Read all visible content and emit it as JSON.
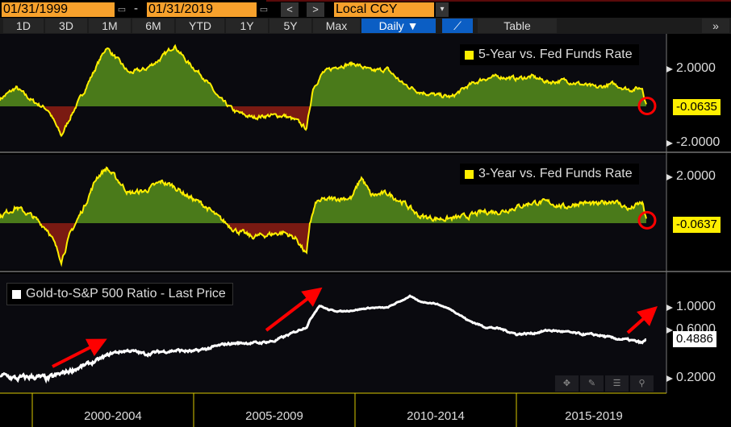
{
  "toolbar": {
    "start_date": "01/31/1999",
    "dash": "-",
    "end_date": "01/31/2019",
    "prev": "<",
    "next": ">",
    "currency": "Local CCY",
    "currency_arrow": "▾",
    "calendar": "▭",
    "ranges": [
      "1D",
      "3D",
      "1M",
      "6M",
      "YTD",
      "1Y",
      "5Y",
      "Max"
    ],
    "frequency": "Daily ▼",
    "chart_icon": "⟋",
    "table": "Table",
    "more": "»"
  },
  "panels": [
    {
      "legend": "5-Year vs. Fed Funds Rate",
      "ticks": [
        "2.0000",
        "-2.0000"
      ],
      "last": "-0.0635"
    },
    {
      "legend": "3-Year vs. Fed Funds Rate",
      "ticks": [
        "2.0000"
      ],
      "last": "-0.0637"
    },
    {
      "legend": "Gold-to-S&P 500 Ratio - Last Price",
      "ticks": [
        "1.0000",
        "0.6000",
        "0.2000"
      ],
      "last": "0.4886"
    }
  ],
  "x_labels": [
    "2000-2004",
    "2005-2009",
    "2010-2014",
    "2015-2019"
  ],
  "chart_tools": [
    "✥",
    "✎",
    "☰",
    "⚲"
  ],
  "colors": {
    "accent": "#f7a12c",
    "active": "#0b5ec4",
    "positive": "#4a7a1a",
    "negative": "#7a1a12",
    "line": "#ffef00"
  },
  "chart_data": [
    {
      "type": "area",
      "title": "5-Year vs. Fed Funds Rate",
      "x": [
        1999,
        1999.5,
        2000,
        2000.5,
        2000.9,
        2001.2,
        2001.6,
        2002,
        2002.3,
        2002.7,
        2003,
        2003.5,
        2004,
        2004.4,
        2004.8,
        2005.3,
        2005.8,
        2006.3,
        2006.8,
        2007.3,
        2007.8,
        2008.2,
        2008.5,
        2008.7,
        2009,
        2009.5,
        2010,
        2010.5,
        2011,
        2011.5,
        2012,
        2012.5,
        2013,
        2013.5,
        2014,
        2014.5,
        2015,
        2015.5,
        2016,
        2016.5,
        2017,
        2017.5,
        2018,
        2018.5,
        2018.9,
        2019.05
      ],
      "y": [
        0.4,
        1.0,
        0.3,
        -0.2,
        -1.6,
        -0.5,
        0.8,
        2.2,
        3.2,
        2.4,
        1.8,
        2.0,
        2.6,
        3.3,
        2.4,
        1.6,
        0.4,
        -0.3,
        -0.6,
        -0.5,
        -0.5,
        -0.8,
        -1.2,
        1.0,
        1.8,
        2.2,
        2.3,
        1.9,
        2.0,
        1.2,
        0.8,
        0.6,
        0.5,
        1.1,
        1.5,
        1.6,
        1.5,
        1.6,
        1.3,
        1.4,
        1.2,
        1.0,
        1.2,
        0.9,
        1.0,
        -0.06
      ],
      "ylim": [
        -2.3,
        3.8
      ]
    },
    {
      "type": "area",
      "title": "3-Year vs. Fed Funds Rate",
      "x": [
        1999,
        1999.5,
        2000,
        2000.5,
        2000.9,
        2001.2,
        2001.6,
        2002,
        2002.3,
        2002.7,
        2003,
        2003.5,
        2004,
        2004.4,
        2004.8,
        2005.3,
        2005.8,
        2006.3,
        2006.8,
        2007.3,
        2007.8,
        2008.2,
        2008.5,
        2008.6,
        2008.8,
        2009,
        2009.7,
        2009.9,
        2010.2,
        2010.5,
        2011,
        2011.5,
        2012,
        2012.5,
        2013,
        2013.5,
        2014,
        2014.5,
        2015,
        2015.5,
        2016,
        2016.5,
        2017,
        2017.5,
        2018,
        2018.5,
        2018.9,
        2019.05
      ],
      "y": [
        0.3,
        0.7,
        0.3,
        -0.3,
        -1.6,
        -0.4,
        0.7,
        2.0,
        2.4,
        1.8,
        1.3,
        1.4,
        1.8,
        1.6,
        1.2,
        0.8,
        0.2,
        -0.3,
        -0.6,
        -0.5,
        -0.4,
        -0.7,
        -1.4,
        0.0,
        0.9,
        1.0,
        1.1,
        1.1,
        2.0,
        1.2,
        1.3,
        0.9,
        0.3,
        0.2,
        0.2,
        0.3,
        0.5,
        0.5,
        0.7,
        0.9,
        0.9,
        0.7,
        0.9,
        0.8,
        1.0,
        0.6,
        0.9,
        -0.06
      ],
      "ylim": [
        -2.0,
        3.0
      ]
    },
    {
      "type": "line",
      "title": "Gold-to-S&P 500 Ratio - Last Price",
      "scale": "log",
      "x": [
        1999,
        1999.5,
        2000,
        2000.5,
        2001,
        2001.5,
        2002,
        2002.5,
        2003,
        2003.5,
        2004,
        2004.5,
        2005,
        2005.5,
        2006,
        2006.5,
        2007,
        2007.5,
        2008,
        2008.5,
        2008.9,
        2009.2,
        2009.6,
        2010,
        2010.5,
        2011,
        2011.5,
        2011.7,
        2012,
        2012.5,
        2013,
        2013.5,
        2014,
        2014.5,
        2015,
        2015.5,
        2016,
        2016.5,
        2017,
        2017.5,
        2018,
        2018.5,
        2018.9,
        2019.05
      ],
      "y": [
        0.22,
        0.2,
        0.21,
        0.2,
        0.23,
        0.26,
        0.3,
        0.36,
        0.38,
        0.35,
        0.37,
        0.38,
        0.37,
        0.4,
        0.44,
        0.45,
        0.45,
        0.47,
        0.55,
        0.65,
        1.05,
        0.95,
        0.92,
        0.95,
        1.0,
        1.0,
        1.2,
        1.3,
        1.15,
        1.1,
        0.95,
        0.75,
        0.65,
        0.62,
        0.55,
        0.56,
        0.6,
        0.58,
        0.55,
        0.54,
        0.5,
        0.48,
        0.45,
        0.49
      ],
      "ylim": [
        0.15,
        1.6
      ]
    }
  ]
}
